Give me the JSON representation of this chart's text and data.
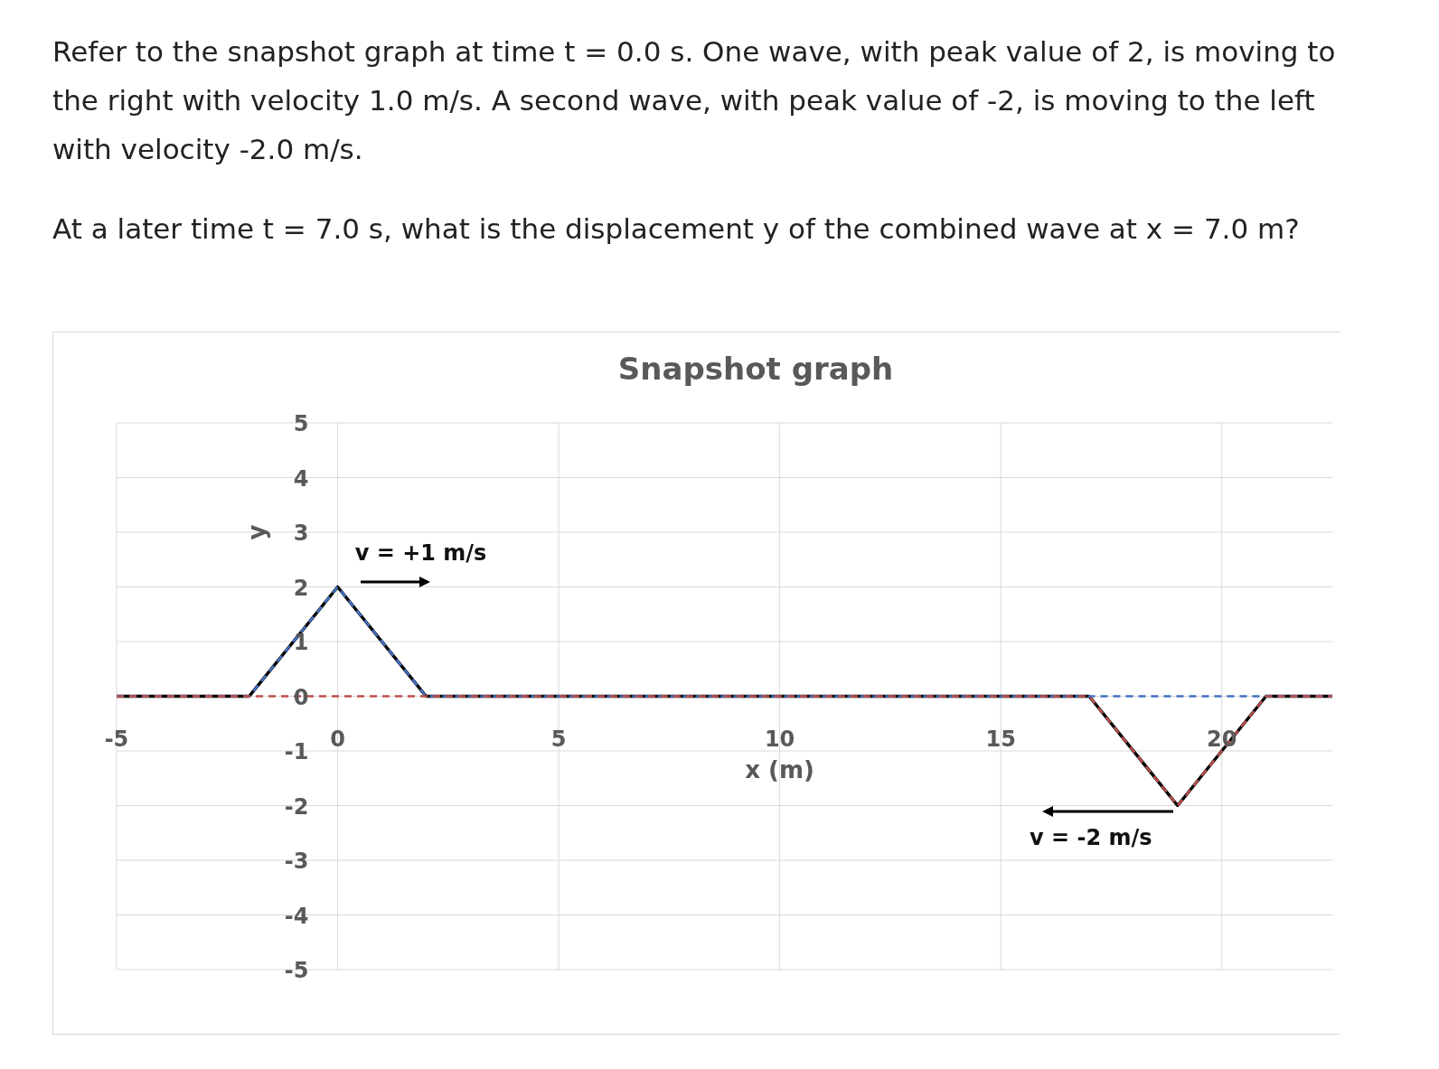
{
  "chart_data": {
    "type": "line",
    "title": "Snapshot graph",
    "subtitle": "Refer to the snapshot graph at time t = 0.0 s. One wave, with peak value of 2, is moving to the right with velocity 1.0 m/s. A second wave, with peak value of -2, is moving to the left with velocity -2.0 m/s.",
    "annotations": [
      "At a later time t = 7.0 s, what is the displacement y of the combined wave at x = 7.0 m?",
      {
        "text": "v = +1 m/s",
        "x": 0,
        "y": 2
      },
      {
        "text": "v = -2 m/s",
        "x": 19,
        "y": -2
      }
    ],
    "xlabel": "x (m)",
    "ylabel": "y",
    "xlim": [
      -5,
      22.5
    ],
    "ylim": [
      -5,
      5
    ],
    "xticks": [
      -5,
      0,
      5,
      10,
      15,
      20
    ],
    "yticks": [
      -5,
      -4,
      -3,
      -2,
      -1,
      0,
      1,
      2,
      3,
      4,
      5
    ],
    "grid": true,
    "marker": "none",
    "series": [
      {
        "color": "#000000",
        "line_style": "solid",
        "x": [
          -5,
          -2,
          0,
          2,
          17,
          19,
          21,
          22.5
        ],
        "values": [
          0,
          0,
          2,
          0,
          0,
          -2,
          0,
          0
        ]
      },
      {
        "color": "#4472c4",
        "line_style": "dashed",
        "x": [
          -5,
          -2,
          0,
          2,
          22.5
        ],
        "values": [
          0,
          0,
          2,
          0,
          0
        ]
      },
      {
        "color": "#c0504d",
        "line_style": "dashed",
        "x": [
          -5,
          17,
          19,
          21,
          22.5
        ],
        "values": [
          0,
          0,
          -2,
          0,
          0
        ]
      }
    ]
  }
}
